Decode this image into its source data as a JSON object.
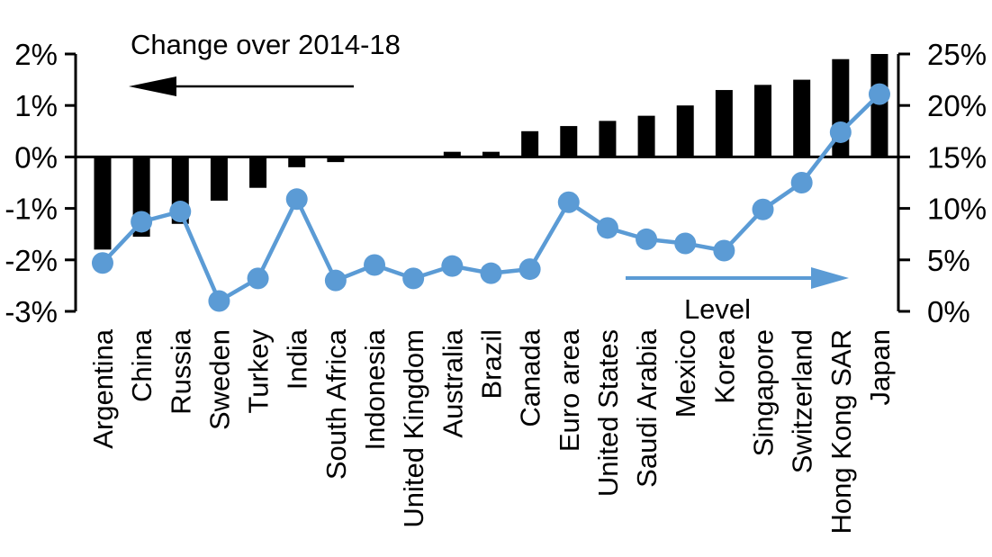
{
  "chart_data": {
    "type": "bar",
    "subtype": "dual-axis bar + line combo",
    "title": "",
    "categories": [
      "Argentina",
      "China",
      "Russia",
      "Sweden",
      "Turkey",
      "India",
      "South Africa",
      "Indonesia",
      "United Kingdom",
      "Australia",
      "Brazil",
      "Canada",
      "Euro area",
      "United States",
      "Saudi Arabia",
      "Mexico",
      "Korea",
      "Singapore",
      "Switzerland",
      "Hong Kong SAR",
      "Japan"
    ],
    "series": [
      {
        "name": "Change over 2014-18",
        "type": "bar",
        "axis": "left",
        "color": "#000000",
        "values": [
          -1.8,
          -1.55,
          -1.3,
          -0.85,
          -0.6,
          -0.2,
          -0.1,
          0,
          0,
          0.1,
          0.1,
          0.5,
          0.6,
          0.7,
          0.8,
          1.0,
          1.3,
          1.4,
          1.5,
          1.9,
          2.0
        ]
      },
      {
        "name": "Level",
        "type": "line",
        "axis": "right",
        "color": "#5B9BD5",
        "values": [
          4.7,
          8.7,
          9.7,
          1.0,
          3.2,
          10.9,
          3.0,
          4.5,
          3.2,
          4.4,
          3.7,
          4.1,
          10.6,
          8.1,
          7.0,
          6.6,
          5.9,
          9.9,
          12.5,
          17.4,
          21.1
        ]
      }
    ],
    "left_axis": {
      "tick_labels": [
        "2%",
        "1%",
        "0%",
        "-1%",
        "-2%",
        "-3%"
      ],
      "tick_values": [
        2,
        1,
        0,
        -1,
        -2,
        -3
      ],
      "min": -3,
      "max": 2
    },
    "right_axis": {
      "tick_labels": [
        "25%",
        "20%",
        "15%",
        "10%",
        "5%",
        "0%"
      ],
      "tick_values": [
        25,
        20,
        15,
        10,
        5,
        0
      ],
      "min": 0,
      "max": 25
    },
    "annotations": [
      {
        "text": "Change over 2014-18",
        "arrow": "left",
        "color": "#000000"
      },
      {
        "text": "Level",
        "arrow": "right",
        "color": "#5B9BD5"
      }
    ],
    "grid": false,
    "legend_position": "none",
    "background": "#FFFFFF"
  }
}
